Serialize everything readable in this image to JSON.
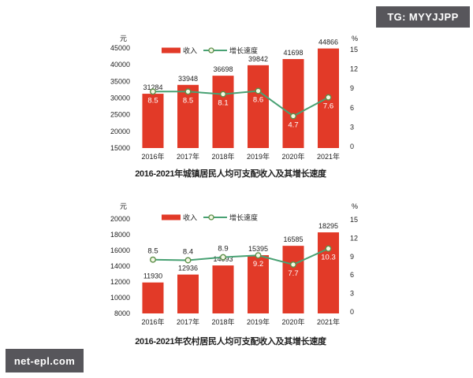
{
  "watermarks": {
    "tg": "TG: MYYJJPP",
    "site": "net-epl.com"
  },
  "colors": {
    "bar": "#e23a28",
    "line": "#48a173",
    "marker_fill": "#f4f8e4",
    "marker_stroke": "#5d8f4a",
    "badge_bg": "#57565b",
    "badge_text": "#ffffff",
    "text": "#222222",
    "label_on_bar": "#ffffff"
  },
  "chart_data": [
    {
      "type": "bar",
      "title": "2016-2021年城镇居民人均可支配收入及其增长速度",
      "categories": [
        "2016年",
        "2017年",
        "2018年",
        "2019年",
        "2020年",
        "2021年"
      ],
      "series": [
        {
          "name": "收入",
          "type": "bar",
          "axis": "left",
          "values": [
            31284,
            33948,
            36698,
            39842,
            41698,
            44866
          ]
        },
        {
          "name": "增长速度",
          "type": "line",
          "axis": "right",
          "values": [
            8.5,
            8.5,
            8.1,
            8.6,
            4.7,
            7.6
          ]
        }
      ],
      "left_axis": {
        "unit": "元",
        "min": 15000,
        "max": 45000,
        "ticks": [
          15000,
          20000,
          25000,
          30000,
          35000,
          40000,
          45000
        ]
      },
      "right_axis": {
        "unit": "%",
        "min": 0,
        "max": 15,
        "ticks": [
          0,
          3,
          6,
          9,
          12,
          15
        ]
      },
      "legend": [
        "收入",
        "增长速度"
      ],
      "legend_position": "top",
      "grid": false
    },
    {
      "type": "bar",
      "title": "2016-2021年农村居民人均可支配收入及其增长速度",
      "categories": [
        "2016年",
        "2017年",
        "2018年",
        "2019年",
        "2020年",
        "2021年"
      ],
      "series": [
        {
          "name": "收入",
          "type": "bar",
          "axis": "left",
          "values": [
            11930,
            12936,
            14093,
            15395,
            16585,
            18295
          ]
        },
        {
          "name": "增长速度",
          "type": "line",
          "axis": "right",
          "values": [
            8.5,
            8.4,
            8.9,
            9.2,
            7.7,
            10.3
          ]
        }
      ],
      "left_axis": {
        "unit": "元",
        "min": 8000,
        "max": 20000,
        "ticks": [
          8000,
          10000,
          12000,
          14000,
          16000,
          18000,
          20000
        ]
      },
      "right_axis": {
        "unit": "%",
        "min": 0,
        "max": 15,
        "ticks": [
          0,
          3,
          6,
          9,
          12,
          15
        ]
      },
      "legend": [
        "收入",
        "增长速度"
      ],
      "legend_position": "top",
      "grid": false
    }
  ]
}
